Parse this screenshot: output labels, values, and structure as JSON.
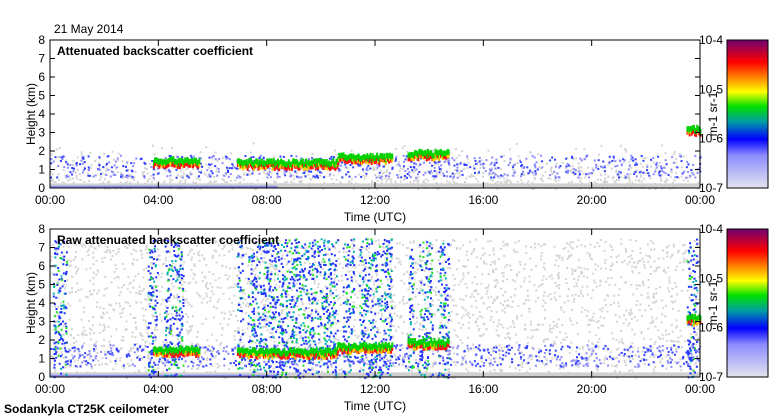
{
  "date": "21 May 2014",
  "footer": "Sodankyla CT25K ceilometer",
  "colors": {
    "gray": "#d8d8d8",
    "blue": "#1a2aff",
    "lightblue": "#8888ff",
    "green": "#00dd00",
    "yellow": "#ffff00",
    "red": "#ff0000",
    "purple": "#7a1a6e"
  },
  "chart_data": [
    {
      "type": "heatmap",
      "title": "Attenuated backscatter coefficient",
      "xlabel": "Time (UTC)",
      "ylabel": "Height (km)",
      "xlim_hours": [
        0,
        24
      ],
      "ylim": [
        0,
        8
      ],
      "xticks": [
        "00:00",
        "04:00",
        "08:00",
        "12:00",
        "16:00",
        "20:00",
        "00:00"
      ],
      "yticks": [
        "0",
        "1",
        "2",
        "3",
        "4",
        "5",
        "6",
        "7",
        "8"
      ],
      "colorbar": {
        "label": "m-1 sr-1",
        "scale": "log",
        "ticks": [
          "10-7",
          "10-6",
          "10-5",
          "10-4"
        ]
      },
      "cloud_layers": [
        {
          "start": 3.8,
          "end": 5.5,
          "height": 1.3
        },
        {
          "start": 6.9,
          "end": 10.6,
          "height": 1.2
        },
        {
          "start": 10.6,
          "end": 12.6,
          "height": 1.5
        },
        {
          "start": 13.2,
          "end": 14.7,
          "height": 1.7
        },
        {
          "start": 23.5,
          "end": 24.0,
          "height": 3.0
        }
      ],
      "noise_band_top_km": 1.8
    },
    {
      "type": "heatmap",
      "title": "Raw attenuated backscatter coefficient",
      "xlabel": "Time (UTC)",
      "ylabel": "Height (km)",
      "xlim_hours": [
        0,
        24
      ],
      "ylim": [
        0,
        8
      ],
      "xticks": [
        "00:00",
        "04:00",
        "08:00",
        "12:00",
        "16:00",
        "20:00",
        "00:00"
      ],
      "yticks": [
        "0",
        "1",
        "2",
        "3",
        "4",
        "5",
        "6",
        "7",
        "8"
      ],
      "colorbar": {
        "label": "m-1 sr-1",
        "scale": "log",
        "ticks": [
          "10-7",
          "10-6",
          "10-5",
          "10-4"
        ]
      },
      "cloud_layers": [
        {
          "start": 3.8,
          "end": 5.5,
          "height": 1.3
        },
        {
          "start": 6.9,
          "end": 10.6,
          "height": 1.2
        },
        {
          "start": 10.6,
          "end": 12.6,
          "height": 1.5
        },
        {
          "start": 13.2,
          "end": 14.7,
          "height": 1.7
        },
        {
          "start": 23.5,
          "end": 24.0,
          "height": 3.0
        }
      ],
      "noisy_columns": [
        [
          0.1,
          0.6
        ],
        [
          3.6,
          3.95
        ],
        [
          4.2,
          4.9
        ],
        [
          6.9,
          7.1
        ],
        [
          7.3,
          10.6
        ],
        [
          10.8,
          11.2
        ],
        [
          11.4,
          12.6
        ],
        [
          13.2,
          13.4
        ],
        [
          13.6,
          14.1
        ],
        [
          14.3,
          14.7
        ],
        [
          23.5,
          23.9
        ]
      ],
      "noise_band_top_km": 7.5
    }
  ]
}
